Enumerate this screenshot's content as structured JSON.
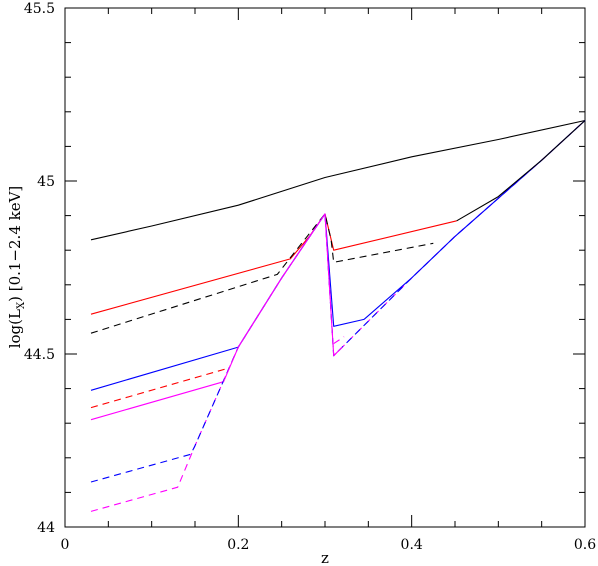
{
  "chart_data": {
    "type": "line",
    "xlabel": "z",
    "ylabel": "log(L",
    "ylabel_sub": "X",
    "ylabel_tail": ") [0.1−2.4 keV]",
    "xlim": [
      0,
      0.6
    ],
    "ylim": [
      44,
      45.5
    ],
    "xticks": [
      {
        "value": 0,
        "label": "0"
      },
      {
        "value": 0.2,
        "label": "0.2"
      },
      {
        "value": 0.4,
        "label": "0.4"
      },
      {
        "value": 0.6,
        "label": "0.6"
      }
    ],
    "yticks": [
      {
        "value": 44,
        "label": "44"
      },
      {
        "value": 44.5,
        "label": "44.5"
      },
      {
        "value": 45,
        "label": "45"
      },
      {
        "value": 45.5,
        "label": "45.5"
      }
    ],
    "grid": false,
    "colors": {
      "black": "#000000",
      "red": "#ff0000",
      "blue": "#0000ff",
      "magenta": "#ff00ff"
    },
    "series": [
      {
        "color": "#000000",
        "dash": false,
        "points": [
          [
            0.03,
            44.83
          ],
          [
            0.1,
            44.87
          ],
          [
            0.2,
            44.93
          ],
          [
            0.3,
            45.01
          ],
          [
            0.4,
            45.07
          ],
          [
            0.5,
            45.12
          ],
          [
            0.6,
            45.175
          ]
        ]
      },
      {
        "color": "#ff0000",
        "dash": false,
        "points": [
          [
            0.03,
            44.615
          ],
          [
            0.26,
            44.775
          ],
          [
            0.282,
            44.84
          ],
          [
            0.3,
            44.905
          ],
          [
            0.31,
            44.8
          ],
          [
            0.452,
            44.885
          ]
        ]
      },
      {
        "color": "#000000",
        "dash": true,
        "points": [
          [
            0.03,
            44.56
          ],
          [
            0.245,
            44.73
          ],
          [
            0.27,
            44.81
          ],
          [
            0.3,
            44.905
          ],
          [
            0.307,
            44.83
          ],
          [
            0.31,
            44.765
          ],
          [
            0.425,
            44.82
          ]
        ]
      },
      {
        "color": "#0000ff",
        "dash": false,
        "points": [
          [
            0.03,
            44.395
          ],
          [
            0.2,
            44.52
          ],
          [
            0.25,
            44.72
          ],
          [
            0.3,
            44.905
          ],
          [
            0.31,
            44.58
          ],
          [
            0.345,
            44.6
          ]
        ]
      },
      {
        "color": "#ff0000",
        "dash": true,
        "points": [
          [
            0.03,
            44.345
          ],
          [
            0.19,
            44.46
          ]
        ]
      },
      {
        "color": "#ff00ff",
        "dash": false,
        "points": [
          [
            0.03,
            44.31
          ],
          [
            0.183,
            44.42
          ]
        ]
      },
      {
        "color": "#ff00ff",
        "dash": true,
        "points": [
          [
            0.03,
            44.045
          ],
          [
            0.13,
            44.115
          ],
          [
            0.15,
            44.235
          ],
          [
            0.2,
            44.52
          ],
          [
            0.25,
            44.72
          ],
          [
            0.3,
            44.905
          ],
          [
            0.31,
            44.495
          ],
          [
            0.36,
            44.62
          ],
          [
            0.4,
            44.72
          ],
          [
            0.45,
            44.84
          ],
          [
            0.5,
            44.95
          ],
          [
            0.55,
            45.06
          ],
          [
            0.6,
            45.175
          ]
        ]
      },
      {
        "color": "#0000ff",
        "dash": true,
        "points": [
          [
            0.03,
            44.13
          ],
          [
            0.145,
            44.21
          ],
          [
            0.15,
            44.235
          ],
          [
            0.2,
            44.52
          ],
          [
            0.25,
            44.72
          ],
          [
            0.3,
            44.905
          ],
          [
            0.31,
            44.495
          ],
          [
            0.36,
            44.62
          ],
          [
            0.4,
            44.72
          ],
          [
            0.45,
            44.84
          ],
          [
            0.5,
            44.95
          ],
          [
            0.55,
            45.06
          ],
          [
            0.6,
            45.175
          ]
        ]
      },
      {
        "color": "#ff00ff",
        "dash": false,
        "points": [
          [
            0.183,
            44.42
          ],
          [
            0.2,
            44.52
          ],
          [
            0.25,
            44.72
          ],
          [
            0.3,
            44.905
          ],
          [
            0.31,
            44.495
          ],
          [
            0.32,
            44.52
          ]
        ]
      },
      {
        "color": "#0000ff",
        "dash": false,
        "points": [
          [
            0.345,
            44.6
          ],
          [
            0.4,
            44.72
          ],
          [
            0.45,
            44.84
          ],
          [
            0.5,
            44.95
          ],
          [
            0.55,
            45.06
          ],
          [
            0.6,
            45.175
          ]
        ]
      },
      {
        "color": "#ff00ff",
        "dash": true,
        "points": [
          [
            0.31,
            44.53
          ],
          [
            0.322,
            44.55
          ]
        ]
      },
      {
        "color": "#000000",
        "dash": false,
        "points": [
          [
            0.452,
            44.885
          ],
          [
            0.5,
            44.955
          ],
          [
            0.55,
            45.06
          ],
          [
            0.6,
            45.175
          ]
        ]
      }
    ]
  }
}
